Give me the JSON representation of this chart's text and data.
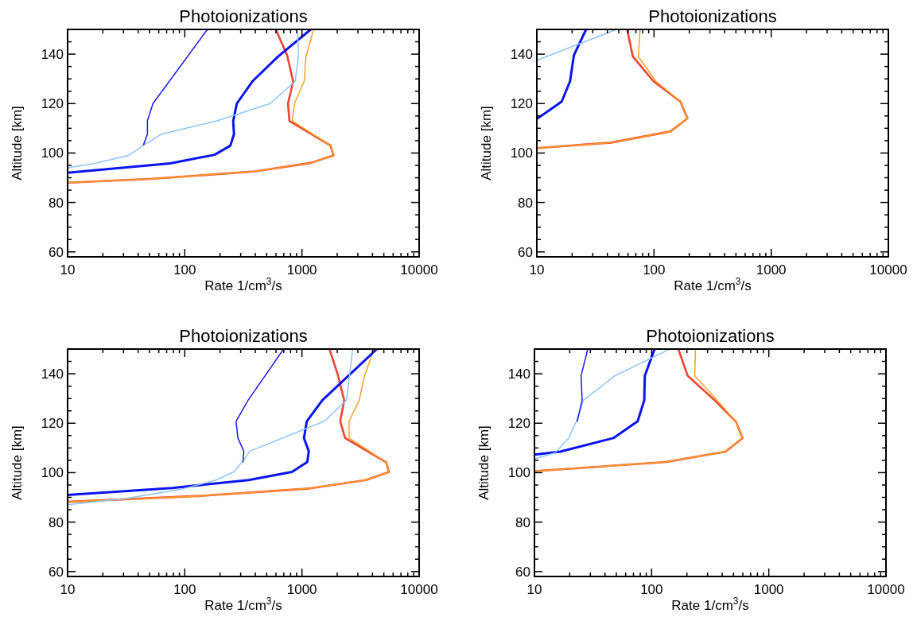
{
  "chart_data": [
    {
      "type": "line",
      "title": "Photoionizations",
      "xlabel": "Rate 1/cm$^{3}$/s",
      "ylabel": "Altitude [km]",
      "log": "x",
      "xlim": [
        10,
        10000
      ],
      "ylim": [
        58,
        150
      ],
      "xticks": [
        10,
        {
          "value": 20,
          "label": null
        },
        {
          "value": 30,
          "label": null
        },
        {
          "value": 40,
          "label": null
        },
        {
          "value": 50,
          "label": null
        },
        {
          "value": 60,
          "label": null
        },
        {
          "value": 70,
          "label": null
        },
        {
          "value": 80,
          "label": null
        },
        {
          "value": 90,
          "label": null
        },
        100,
        {
          "value": 200,
          "label": null
        },
        {
          "value": 300,
          "label": null
        },
        {
          "value": 400,
          "label": null
        },
        {
          "value": 500,
          "label": null
        },
        {
          "value": 600,
          "label": null
        },
        {
          "value": 700,
          "label": null
        },
        {
          "value": 800,
          "label": null
        },
        {
          "value": 900,
          "label": null
        },
        1000,
        {
          "value": 2000,
          "label": null
        },
        {
          "value": 3000,
          "label": null
        },
        {
          "value": 4000,
          "label": null
        },
        {
          "value": 5000,
          "label": null
        },
        {
          "value": 6000,
          "label": null
        },
        {
          "value": 7000,
          "label": null
        },
        {
          "value": 8000,
          "label": null
        },
        {
          "value": 9000,
          "label": null
        },
        10000
      ],
      "yticks": [
        60,
        {
          "value": 65,
          "label": null
        },
        {
          "value": 70,
          "label": null
        },
        {
          "value": 75,
          "label": null
        },
        80,
        {
          "value": 85,
          "label": null
        },
        {
          "value": 90,
          "label": null
        },
        {
          "value": 95,
          "label": null
        },
        100,
        {
          "value": 105,
          "label": null
        },
        {
          "value": 110,
          "label": null
        },
        {
          "value": 115,
          "label": null
        },
        120,
        {
          "value": 125,
          "label": null
        },
        {
          "value": 130,
          "label": null
        },
        {
          "value": 135,
          "label": null
        },
        140,
        {
          "value": 145,
          "label": null
        },
        {
          "value": 150,
          "label": null
        }
      ],
      "series": [
        {
          "color": "#ee4433",
          "x": [
            598,
            748,
            841,
            760,
            782,
            1757,
            1858,
            1189,
            400,
            51,
            10
          ],
          "values": [
            150,
            139.5,
            129,
            120,
            113,
            103,
            99,
            96,
            92.6,
            89.5,
            88
          ]
        },
        {
          "color": "#ffa020",
          "x": [
            1258,
            1081,
            1045,
            864,
            827,
            1757,
            1858,
            1189,
            400,
            51,
            10
          ],
          "values": [
            150,
            139,
            129,
            120,
            113,
            103,
            99,
            96,
            92.6,
            89.5,
            88
          ]
        },
        {
          "color": "#0a14f0",
          "x": [
            1189,
            625,
            378,
            278,
            259,
            263,
            245,
            180,
            75,
            10
          ],
          "values": [
            150,
            139,
            129,
            120,
            113,
            107.6,
            103,
            99.3,
            95.8,
            92
          ]
        },
        {
          "color": "#8cc4ff",
          "x": [
            914,
            935,
            875,
            535,
            188,
            63,
            44,
            33,
            17,
            10
          ],
          "values": [
            150,
            139.5,
            129,
            120,
            113,
            107.6,
            103,
            99,
            95.8,
            94
          ]
        },
        {
          "color": "#1a1aee",
          "x": [
            156,
            53.5,
            48,
            48,
            44.5
          ],
          "values": [
            150,
            120,
            113,
            107.6,
            103.4
          ]
        }
      ]
    },
    {
      "type": "line",
      "title": "Photoionizations",
      "xlabel": "Rate 1/cm$^{3}$/s",
      "ylabel": "Altitude [km]",
      "log": "x",
      "xlim": [
        10,
        10000
      ],
      "ylim": [
        58,
        150
      ],
      "xticks": [
        10,
        {
          "value": 20,
          "label": null
        },
        {
          "value": 30,
          "label": null
        },
        {
          "value": 40,
          "label": null
        },
        {
          "value": 50,
          "label": null
        },
        {
          "value": 60,
          "label": null
        },
        {
          "value": 70,
          "label": null
        },
        {
          "value": 80,
          "label": null
        },
        {
          "value": 90,
          "label": null
        },
        100,
        {
          "value": 200,
          "label": null
        },
        {
          "value": 300,
          "label": null
        },
        {
          "value": 400,
          "label": null
        },
        {
          "value": 500,
          "label": null
        },
        {
          "value": 600,
          "label": null
        },
        {
          "value": 700,
          "label": null
        },
        {
          "value": 800,
          "label": null
        },
        {
          "value": 900,
          "label": null
        },
        1000,
        {
          "value": 2000,
          "label": null
        },
        {
          "value": 3000,
          "label": null
        },
        {
          "value": 4000,
          "label": null
        },
        {
          "value": 5000,
          "label": null
        },
        {
          "value": 6000,
          "label": null
        },
        {
          "value": 7000,
          "label": null
        },
        {
          "value": 8000,
          "label": null
        },
        {
          "value": 9000,
          "label": null
        },
        10000
      ],
      "yticks": [
        60,
        {
          "value": 65,
          "label": null
        },
        {
          "value": 70,
          "label": null
        },
        {
          "value": 75,
          "label": null
        },
        80,
        {
          "value": 85,
          "label": null
        },
        {
          "value": 90,
          "label": null
        },
        {
          "value": 95,
          "label": null
        },
        100,
        {
          "value": 105,
          "label": null
        },
        {
          "value": 110,
          "label": null
        },
        {
          "value": 115,
          "label": null
        },
        120,
        {
          "value": 125,
          "label": null
        },
        {
          "value": 130,
          "label": null
        },
        {
          "value": 135,
          "label": null
        },
        140,
        {
          "value": 145,
          "label": null
        },
        {
          "value": 150,
          "label": null
        }
      ],
      "series": [
        {
          "color": "#ee4433",
          "x": [
            59,
            66,
            99,
            168,
            193,
            138,
            42.8,
            10
          ],
          "values": [
            150,
            139,
            129,
            120.8,
            114,
            108.7,
            104.2,
            102
          ]
        },
        {
          "color": "#ffa020",
          "x": [
            76,
            73.5,
            104,
            168,
            193,
            138,
            42.8,
            10
          ],
          "values": [
            150,
            139,
            129,
            120.8,
            114,
            108.7,
            104.2,
            102
          ]
        },
        {
          "color": "#0a14f0",
          "x": [
            26.3,
            20.7,
            19.2,
            16.3,
            10
          ],
          "values": [
            150,
            139.5,
            129,
            120.8,
            113.8
          ]
        },
        {
          "color": "#8cc4ff",
          "x": [
            47.9,
            10
          ],
          "values": [
            150,
            137.5
          ]
        }
      ]
    },
    {
      "type": "line",
      "title": "Photoionizations",
      "xlabel": "Rate 1/cm$^{3}$/s",
      "ylabel": "Altitude [km]",
      "log": "x",
      "xlim": [
        10,
        10000
      ],
      "ylim": [
        58,
        150
      ],
      "xticks": [
        10,
        {
          "value": 20,
          "label": null
        },
        {
          "value": 30,
          "label": null
        },
        {
          "value": 40,
          "label": null
        },
        {
          "value": 50,
          "label": null
        },
        {
          "value": 60,
          "label": null
        },
        {
          "value": 70,
          "label": null
        },
        {
          "value": 80,
          "label": null
        },
        {
          "value": 90,
          "label": null
        },
        100,
        {
          "value": 200,
          "label": null
        },
        {
          "value": 300,
          "label": null
        },
        {
          "value": 400,
          "label": null
        },
        {
          "value": 500,
          "label": null
        },
        {
          "value": 600,
          "label": null
        },
        {
          "value": 700,
          "label": null
        },
        {
          "value": 800,
          "label": null
        },
        {
          "value": 900,
          "label": null
        },
        1000,
        {
          "value": 2000,
          "label": null
        },
        {
          "value": 3000,
          "label": null
        },
        {
          "value": 4000,
          "label": null
        },
        {
          "value": 5000,
          "label": null
        },
        {
          "value": 6000,
          "label": null
        },
        {
          "value": 7000,
          "label": null
        },
        {
          "value": 8000,
          "label": null
        },
        {
          "value": 9000,
          "label": null
        },
        10000
      ],
      "yticks": [
        60,
        {
          "value": 65,
          "label": null
        },
        {
          "value": 70,
          "label": null
        },
        {
          "value": 75,
          "label": null
        },
        80,
        {
          "value": 85,
          "label": null
        },
        {
          "value": 90,
          "label": null
        },
        {
          "value": 95,
          "label": null
        },
        100,
        {
          "value": 105,
          "label": null
        },
        {
          "value": 110,
          "label": null
        },
        {
          "value": 115,
          "label": null
        },
        120,
        {
          "value": 125,
          "label": null
        },
        {
          "value": 130,
          "label": null
        },
        {
          "value": 135,
          "label": null
        },
        140,
        {
          "value": 145,
          "label": null
        },
        {
          "value": 150,
          "label": null
        }
      ],
      "series": [
        {
          "color": "#ee4433",
          "x": [
            1717,
            2029,
            2294,
            2122,
            2333,
            5240,
            5537,
            3508,
            1161,
            136,
            10
          ],
          "values": [
            150,
            139.4,
            129.3,
            120.8,
            114,
            104.2,
            100.3,
            97,
            93.6,
            90.6,
            88.2
          ]
        },
        {
          "color": "#ffa020",
          "x": [
            4121,
            3411,
            3085,
            2522,
            2522,
            5240,
            5537,
            3508,
            1161,
            136,
            10
          ],
          "values": [
            150,
            139,
            129.3,
            120.8,
            114,
            104.2,
            100.3,
            97,
            93.6,
            90.6,
            88.2
          ]
        },
        {
          "color": "#0a14f0",
          "x": [
            4355,
            1493,
            1100,
            1040,
            1143,
            1111,
            822,
            351,
            78,
            10
          ],
          "values": [
            150,
            129.3,
            120.8,
            114,
            108.7,
            104.3,
            100.3,
            97,
            93.8,
            91
          ]
        },
        {
          "color": "#8cc4ff",
          "x": [
            2711,
            2399,
            1553,
            360,
            309,
            262,
            185,
            97,
            32,
            10
          ],
          "values": [
            150,
            129.3,
            120.8,
            108.7,
            104.3,
            100.3,
            97,
            93.5,
            89.6,
            87
          ]
        },
        {
          "color": "#1a1aee",
          "x": [
            697,
            347,
            274,
            284,
            319,
            314
          ],
          "values": [
            150,
            129.3,
            120.8,
            114,
            108.7,
            104.3
          ]
        }
      ]
    },
    {
      "type": "line",
      "title": "Photoionizations",
      "xlabel": "Rate 1/cm$^{3}$/s",
      "ylabel": "Altitude [km]",
      "log": "x",
      "xlim": [
        10,
        10000
      ],
      "ylim": [
        58,
        150
      ],
      "xticks": [
        10,
        {
          "value": 20,
          "label": null
        },
        {
          "value": 30,
          "label": null
        },
        {
          "value": 40,
          "label": null
        },
        {
          "value": 50,
          "label": null
        },
        {
          "value": 60,
          "label": null
        },
        {
          "value": 70,
          "label": null
        },
        {
          "value": 80,
          "label": null
        },
        {
          "value": 90,
          "label": null
        },
        100,
        {
          "value": 200,
          "label": null
        },
        {
          "value": 300,
          "label": null
        },
        {
          "value": 400,
          "label": null
        },
        {
          "value": 500,
          "label": null
        },
        {
          "value": 600,
          "label": null
        },
        {
          "value": 700,
          "label": null
        },
        {
          "value": 800,
          "label": null
        },
        {
          "value": 900,
          "label": null
        },
        1000,
        {
          "value": 2000,
          "label": null
        },
        {
          "value": 3000,
          "label": null
        },
        {
          "value": 4000,
          "label": null
        },
        {
          "value": 5000,
          "label": null
        },
        {
          "value": 6000,
          "label": null
        },
        {
          "value": 7000,
          "label": null
        },
        {
          "value": 8000,
          "label": null
        },
        {
          "value": 9000,
          "label": null
        },
        10000
      ],
      "yticks": [
        60,
        {
          "value": 65,
          "label": null
        },
        {
          "value": 70,
          "label": null
        },
        {
          "value": 75,
          "label": null
        },
        80,
        {
          "value": 85,
          "label": null
        },
        {
          "value": 90,
          "label": null
        },
        {
          "value": 95,
          "label": null
        },
        100,
        {
          "value": 105,
          "label": null
        },
        {
          "value": 110,
          "label": null
        },
        {
          "value": 115,
          "label": null
        },
        120,
        {
          "value": 125,
          "label": null
        },
        {
          "value": 130,
          "label": null
        },
        {
          "value": 135,
          "label": null
        },
        140,
        {
          "value": 145,
          "label": null
        },
        {
          "value": 150,
          "label": null
        }
      ],
      "series": [
        {
          "color": "#ee4433",
          "x": [
            169,
            203,
            345,
            525,
            597,
            427,
            133,
            10
          ],
          "values": [
            150,
            139.2,
            129.3,
            120.6,
            114,
            108.5,
            104.3,
            100.6
          ]
        },
        {
          "color": "#ffa020",
          "x": [
            237,
            233,
            361,
            525,
            597,
            427,
            133,
            10
          ],
          "values": [
            150,
            139.2,
            129.3,
            120.6,
            114,
            108.5,
            104.3,
            100.6
          ]
        },
        {
          "color": "#0a14f0",
          "x": [
            106,
            87.5,
            86.5,
            76,
            47.2,
            16.6,
            10
          ],
          "values": [
            150,
            139.2,
            129.3,
            120.8,
            114,
            108.5,
            107.3
          ]
        },
        {
          "color": "#8cc4ff",
          "x": [
            143,
            48.5,
            26.2,
            22.8,
            19.6,
            15,
            10
          ],
          "values": [
            150,
            139.2,
            129.3,
            120.8,
            114,
            108,
            105.6
          ]
        },
        {
          "color": "#1a1aee",
          "x": [
            28.5,
            25,
            25.5,
            23.2
          ],
          "values": [
            150,
            139.2,
            129.3,
            120.8
          ]
        }
      ]
    }
  ]
}
